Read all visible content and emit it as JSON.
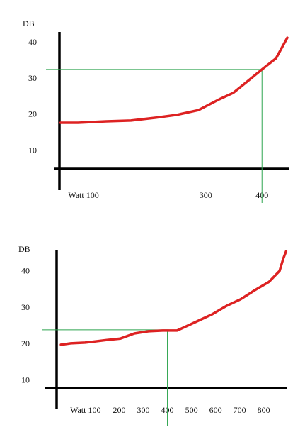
{
  "chart_data": [
    {
      "type": "line",
      "y_label": "DB",
      "x": [
        42,
        73,
        123,
        167,
        211,
        249,
        287,
        324,
        349,
        375,
        400,
        425,
        445
      ],
      "series": [
        {
          "color": "#dd2222",
          "values": [
            17.8,
            17.8,
            18.2,
            18.4,
            19.2,
            20.0,
            21.3,
            24.3,
            26.1,
            29.4,
            32.6,
            35.7,
            41.4
          ]
        }
      ],
      "xlim": [
        40,
        445
      ],
      "ylim": [
        5,
        43
      ],
      "xticks": [
        {
          "value": 100,
          "label": "Watt 100"
        },
        300,
        400
      ],
      "yticks": [
        10,
        20,
        30,
        40
      ],
      "reference": {
        "x": 400,
        "y": 32.6,
        "color": "#2ea44f"
      }
    },
    {
      "type": "line",
      "y_label": "DB",
      "x": [
        -42,
        -1,
        58,
        146,
        205,
        263,
        322,
        381,
        440,
        528,
        587,
        646,
        704,
        763,
        822,
        866,
        881,
        893
      ],
      "series": [
        {
          "color": "#dd2222",
          "values": [
            19.9,
            20.3,
            20.5,
            21.2,
            21.6,
            23.0,
            23.6,
            23.8,
            23.8,
            26.5,
            28.3,
            30.6,
            32.4,
            34.9,
            37.2,
            40.2,
            43.5,
            45.6
          ]
        }
      ],
      "xlim": [
        -60,
        895
      ],
      "ylim": [
        8,
        46
      ],
      "xticks": [
        {
          "value": 100,
          "label": "Watt 100"
        },
        200,
        300,
        400,
        500,
        600,
        700,
        800
      ],
      "yticks": [
        10,
        20,
        30,
        40
      ],
      "reference": {
        "x": 400,
        "y": 24.0,
        "color": "#2ea44f"
      }
    }
  ]
}
